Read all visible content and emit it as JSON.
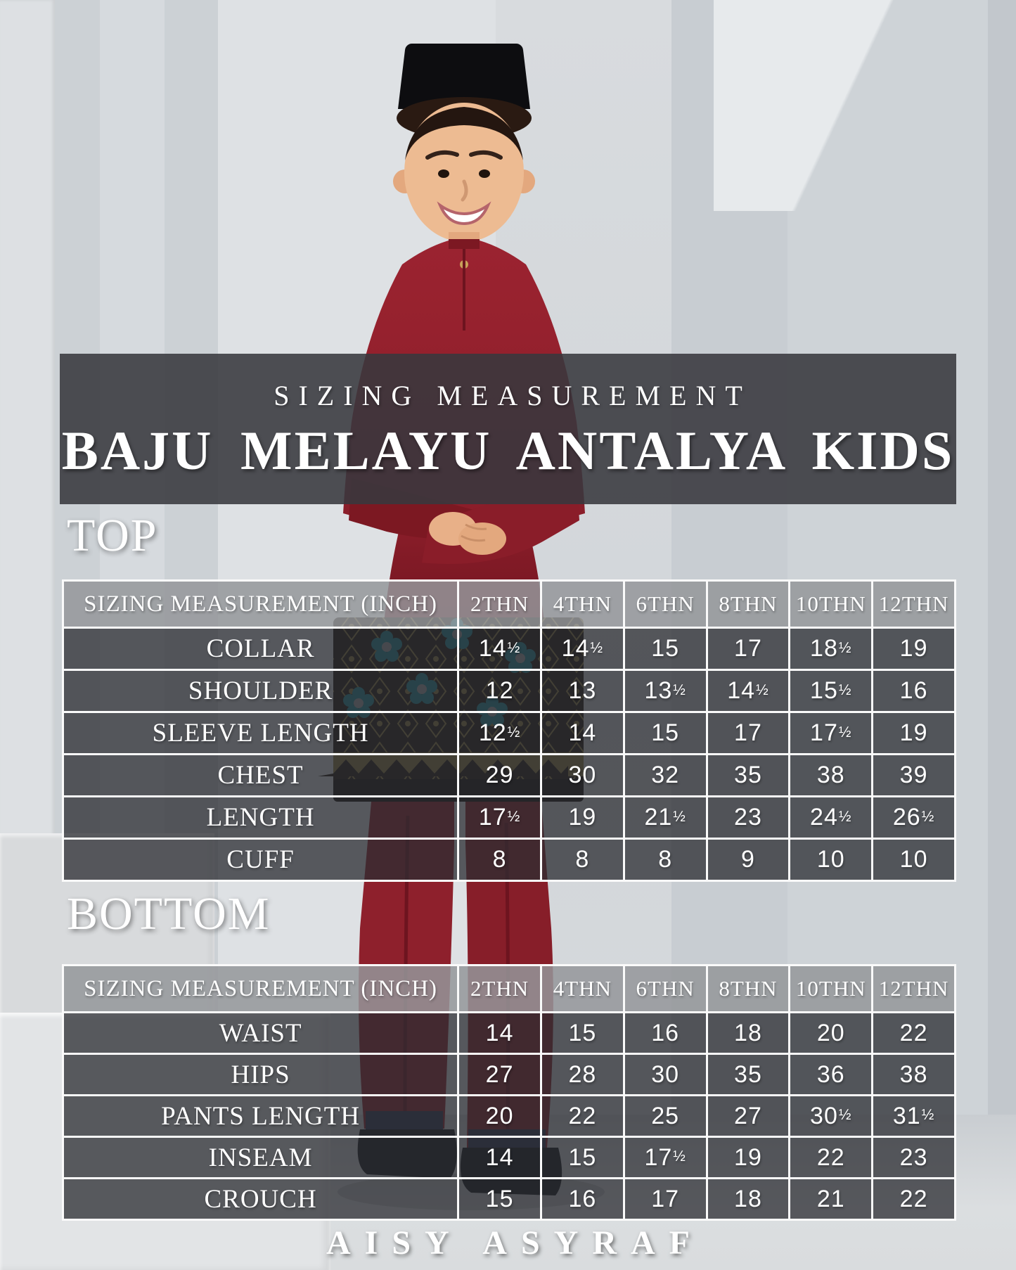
{
  "header": {
    "kicker": "SIZING MEASUREMENT",
    "title": "BAJU MELAYU ANTALYA KIDS"
  },
  "top_section": {
    "heading": "TOP",
    "table": {
      "header": [
        "SIZING MEASUREMENT (INCH)",
        "2THN",
        "4THN",
        "6THN",
        "8THN",
        "10THN",
        "12THN"
      ],
      "rows": [
        {
          "label": "COLLAR",
          "values": [
            "14½",
            "14½",
            "15",
            "17",
            "18½",
            "19"
          ]
        },
        {
          "label": "SHOULDER",
          "values": [
            "12",
            "13",
            "13½",
            "14½",
            "15½",
            "16"
          ]
        },
        {
          "label": "SLEEVE LENGTH",
          "values": [
            "12½",
            "14",
            "15",
            "17",
            "17½",
            "19"
          ]
        },
        {
          "label": "CHEST",
          "values": [
            "29",
            "30",
            "32",
            "35",
            "38",
            "39"
          ]
        },
        {
          "label": "LENGTH",
          "values": [
            "17½",
            "19",
            "21½",
            "23",
            "24½",
            "26½"
          ]
        },
        {
          "label": "CUFF",
          "values": [
            "8",
            "8",
            "8",
            "9",
            "10",
            "10"
          ]
        }
      ]
    }
  },
  "bottom_section": {
    "heading": "BOTTOM",
    "table": {
      "header": [
        "SIZING MEASUREMENT (INCH)",
        "2THN",
        "4THN",
        "6THN",
        "8THN",
        "10THN",
        "12THN"
      ],
      "rows": [
        {
          "label": "WAIST",
          "values": [
            "14",
            "15",
            "16",
            "18",
            "20",
            "22"
          ]
        },
        {
          "label": "HIPS",
          "values": [
            "27",
            "28",
            "30",
            "35",
            "36",
            "38"
          ]
        },
        {
          "label": "PANTS LENGTH",
          "values": [
            "20",
            "22",
            "25",
            "27",
            "30½",
            "31½"
          ]
        },
        {
          "label": "INSEAM",
          "values": [
            "14",
            "15",
            "17½",
            "19",
            "22",
            "23"
          ]
        },
        {
          "label": "CROUCH",
          "values": [
            "15",
            "16",
            "17",
            "18",
            "21",
            "22"
          ]
        }
      ]
    }
  },
  "footer": {
    "brand": "AISY ASYRAF"
  },
  "colors": {
    "band_overlay": "#38383d",
    "table_row_overlay": "#2c2d32",
    "table_header_gray": "#96989a",
    "grid_white": "#fafafa",
    "outfit_red": "#8e212d",
    "songkok_black": "#0d0d10",
    "songket_gold": "#8a7a3f",
    "songket_teal": "#1f8794",
    "backdrop_gray": "#d2d6da"
  }
}
